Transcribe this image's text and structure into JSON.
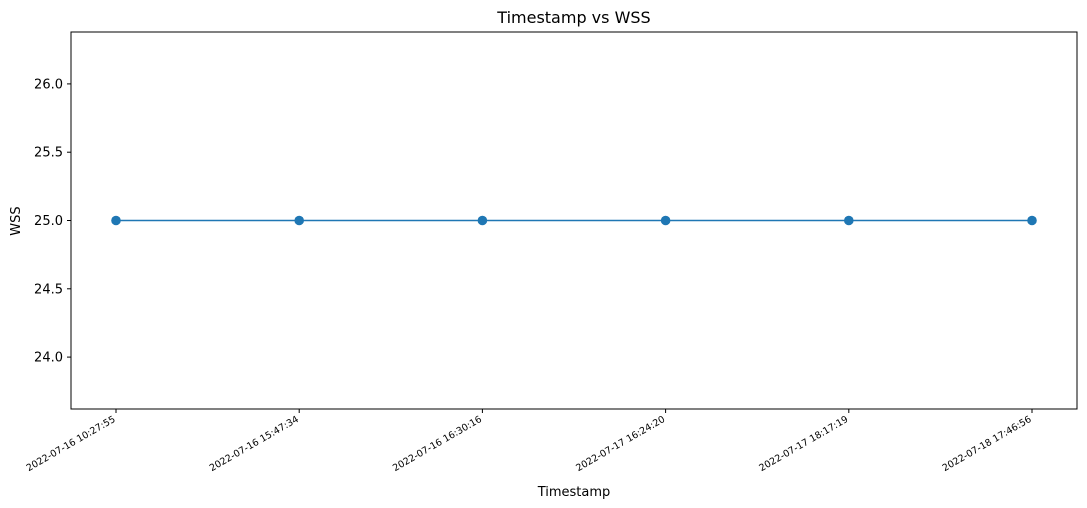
{
  "chart_data": {
    "type": "line",
    "title": "Timestamp vs WSS",
    "xlabel": "Timestamp",
    "ylabel": "WSS",
    "categories": [
      "2022-07-16 10:27:55",
      "2022-07-16 15:47:34",
      "2022-07-16 16:30:16",
      "2022-07-17 16:24:20",
      "2022-07-17 18:17:19",
      "2022-07-18 17:46:56"
    ],
    "series": [
      {
        "values": [
          25.0,
          25.0,
          25.0,
          25.0,
          25.0,
          25.0
        ],
        "color": "#1f77b4",
        "marker": "circle"
      }
    ],
    "ylim": [
      23.62,
      26.38
    ],
    "yticks": [
      24.0,
      24.5,
      25.0,
      25.5,
      26.0
    ],
    "grid": false,
    "legend": "none"
  }
}
